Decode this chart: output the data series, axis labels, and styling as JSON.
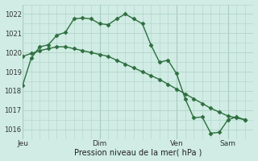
{
  "background_color": "#d0ece4",
  "grid_color": "#b0d4c8",
  "line_color": "#2d6e3e",
  "title": "Pression niveau de la mer( hPa )",
  "ylim": [
    1015.5,
    1022.5
  ],
  "yticks": [
    1016,
    1017,
    1018,
    1019,
    1020,
    1021,
    1022
  ],
  "day_labels": [
    "Jeu",
    "Dim",
    "Ven",
    "Sam"
  ],
  "day_positions": [
    0,
    9,
    18,
    24
  ],
  "xlim": [
    0,
    27
  ],
  "series1_x": [
    0,
    1,
    2,
    3,
    4,
    5,
    6,
    7,
    8,
    9,
    10,
    11,
    12,
    13,
    14,
    15,
    16,
    17,
    18,
    19,
    20,
    21,
    22,
    23,
    24,
    25,
    26
  ],
  "series1_y": [
    1018.3,
    1019.7,
    1020.3,
    1020.4,
    1020.9,
    1021.05,
    1021.75,
    1021.8,
    1021.75,
    1021.5,
    1021.45,
    1021.75,
    1022.0,
    1021.75,
    1021.5,
    1020.4,
    1019.5,
    1019.6,
    1018.9,
    1017.6,
    1016.6,
    1016.65,
    1015.8,
    1015.85,
    1016.5,
    1016.65,
    1016.5
  ],
  "series2_x": [
    0,
    1,
    2,
    3,
    4,
    5,
    6,
    7,
    8,
    9,
    10,
    11,
    12,
    13,
    14,
    15,
    16,
    17,
    18,
    19,
    20,
    21,
    22,
    23,
    24,
    25,
    26
  ],
  "series2_y": [
    1019.8,
    1019.95,
    1020.1,
    1020.2,
    1020.3,
    1020.3,
    1020.2,
    1020.1,
    1020.0,
    1019.9,
    1019.8,
    1019.6,
    1019.4,
    1019.2,
    1019.0,
    1018.8,
    1018.6,
    1018.35,
    1018.1,
    1017.85,
    1017.6,
    1017.35,
    1017.1,
    1016.9,
    1016.7,
    1016.6,
    1016.5
  ],
  "marker": "D",
  "markersize": 2.5,
  "linewidth": 1.0
}
